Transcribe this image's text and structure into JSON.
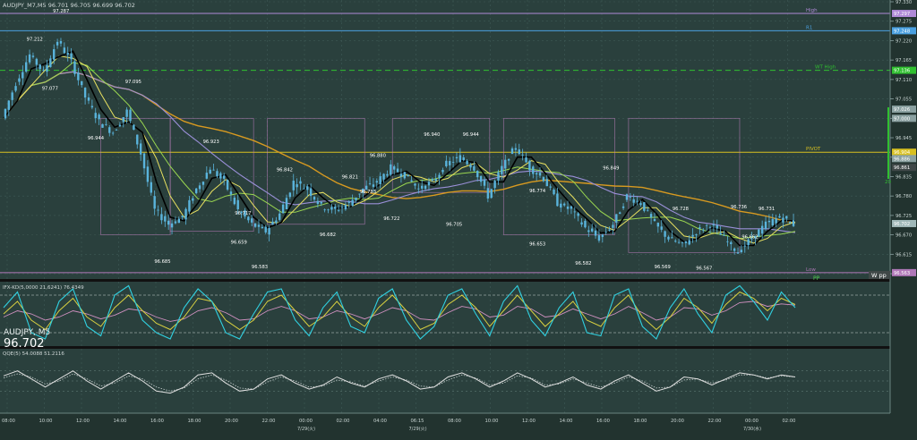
{
  "header": {
    "symbol_line": "AUDJPY_M7,M5 96.701 96.705 96.699 96.702",
    "symbol": "AUDJPY, M5",
    "last_price": "96.702",
    "pane1_label": "IFX-KD(5,0000 21,6241) 76.4349",
    "pane2_label": "QQE(5) 54.0088 51.2116"
  },
  "colors": {
    "background": "#2a403d",
    "grid": "#3f5a56",
    "candle": "#5ab4dc",
    "price_black": "#000000",
    "ma_yellow": "#e8e060",
    "ma_green": "#9ad650",
    "ma_violet": "#9a8fd8",
    "ma_orange": "#d89a20",
    "level_high": "#c0a0e0",
    "level_r1": "#4aa0e0",
    "level_wthigh": "#30b030",
    "level_pivot": "#d8c020",
    "level_low": "#c080c0",
    "osc_cyan": "#30d0e0",
    "osc_yellow": "#d8d040",
    "osc_pink": "#d090c0",
    "qqe_white": "#e0e0e0"
  },
  "levels": [
    {
      "name": "High",
      "value": 97.297,
      "label": "97.297",
      "color": "#b08ad8",
      "dash": false
    },
    {
      "name": "R1",
      "value": 97.248,
      "label": "97.248",
      "color": "#4aa0e0",
      "dash": false
    },
    {
      "name": "WT High",
      "value": 97.136,
      "label": "97.136",
      "color": "#30c030",
      "dash": true
    },
    {
      "name": "PIVOT",
      "value": 96.904,
      "label": "96.904",
      "color": "#d8c020",
      "dash": false
    },
    {
      "name": "Low",
      "value": 96.563,
      "label": "96.563",
      "color": "#b078b8",
      "dash": false
    }
  ],
  "wpp_label": "W pp",
  "pp_label": "PP",
  "side_tag": "20",
  "chart_data": {
    "type": "candlestick",
    "title": "AUDJPY, M5",
    "ylim": [
      96.55,
      97.33
    ],
    "yticks": [
      "97.330",
      "97.275",
      "97.220",
      "97.165",
      "97.110",
      "97.055",
      "97.000",
      "96.945",
      "96.890",
      "96.835",
      "96.780",
      "96.725",
      "96.670",
      "96.615",
      "96.560"
    ],
    "price_tags": [
      {
        "label": "97.297",
        "value": 97.297,
        "color": "#b08ad8"
      },
      {
        "label": "97.248",
        "value": 97.248,
        "color": "#4aa0e0"
      },
      {
        "label": "97.136",
        "value": 97.136,
        "color": "#30c030"
      },
      {
        "label": "97.026",
        "value": 97.026,
        "color": "#8aa0a0"
      },
      {
        "label": "97.000",
        "value": 97.0,
        "color": "#8aa0a0"
      },
      {
        "label": "96.904",
        "value": 96.904,
        "color": "#d8c020"
      },
      {
        "label": "96.886",
        "value": 96.886,
        "color": "#8aa0a0"
      },
      {
        "label": "96.861",
        "value": 96.861,
        "color": "#404848"
      },
      {
        "label": "96.702",
        "value": 96.702,
        "color": "#a0b8b8"
      },
      {
        "label": "96.563",
        "value": 96.563,
        "color": "#b078b8"
      }
    ],
    "xtick_labels": [
      "08:00",
      "10:00",
      "12:00",
      "14:00",
      "16:00",
      "18:00",
      "20:00",
      "22:00",
      "00:00",
      "02:00",
      "04:00",
      "06:15",
      "08:00",
      "10:00",
      "12:00",
      "14:00",
      "16:00",
      "18:00",
      "20:00",
      "22:00",
      "00:00",
      "02:00"
    ],
    "date_labels": [
      {
        "label": "7/29(火)",
        "index": 8
      },
      {
        "label": "7/29(火)",
        "index": 11
      },
      {
        "label": "7/30(水)",
        "index": 20
      }
    ],
    "price_path": [
      [
        0,
        97.0
      ],
      [
        1,
        97.1
      ],
      [
        2,
        97.18
      ],
      [
        3,
        97.13
      ],
      [
        4,
        97.22
      ],
      [
        5,
        97.16
      ],
      [
        6,
        97.06
      ],
      [
        7,
        96.99
      ],
      [
        8,
        96.96
      ],
      [
        9,
        97.02
      ],
      [
        10,
        96.9
      ],
      [
        11,
        96.74
      ],
      [
        12,
        96.7
      ],
      [
        13,
        96.72
      ],
      [
        14,
        96.8
      ],
      [
        15,
        96.86
      ],
      [
        16,
        96.82
      ],
      [
        17,
        96.74
      ],
      [
        18,
        96.7
      ],
      [
        19,
        96.68
      ],
      [
        20,
        96.73
      ],
      [
        21,
        96.82
      ],
      [
        22,
        96.8
      ],
      [
        23,
        96.75
      ],
      [
        24,
        96.74
      ],
      [
        25,
        96.76
      ],
      [
        26,
        96.8
      ],
      [
        27,
        96.82
      ],
      [
        28,
        96.86
      ],
      [
        29,
        96.84
      ],
      [
        30,
        96.8
      ],
      [
        31,
        96.82
      ],
      [
        32,
        96.87
      ],
      [
        33,
        96.89
      ],
      [
        34,
        96.86
      ],
      [
        35,
        96.78
      ],
      [
        36,
        96.86
      ],
      [
        37,
        96.92
      ],
      [
        38,
        96.86
      ],
      [
        39,
        96.83
      ],
      [
        40,
        96.76
      ],
      [
        41,
        96.74
      ],
      [
        42,
        96.69
      ],
      [
        43,
        96.66
      ],
      [
        44,
        96.7
      ],
      [
        45,
        96.78
      ],
      [
        46,
        96.76
      ],
      [
        47,
        96.7
      ],
      [
        48,
        96.66
      ],
      [
        49,
        96.64
      ],
      [
        50,
        96.68
      ],
      [
        51,
        96.7
      ],
      [
        52,
        96.66
      ],
      [
        53,
        96.62
      ],
      [
        54,
        96.66
      ],
      [
        55,
        96.7
      ],
      [
        56,
        96.72
      ],
      [
        57,
        96.7
      ]
    ],
    "annotations": [
      {
        "text": "97.287",
        "i": 4.2,
        "v": 97.3
      },
      {
        "text": "97.212",
        "i": 2.3,
        "v": 97.22
      },
      {
        "text": "97.077",
        "i": 3.4,
        "v": 97.08
      },
      {
        "text": "97.095",
        "i": 9.4,
        "v": 97.1
      },
      {
        "text": "96.944",
        "i": 6.7,
        "v": 96.94
      },
      {
        "text": "96.923",
        "i": 15.0,
        "v": 96.93
      },
      {
        "text": "96.842",
        "i": 20.3,
        "v": 96.85
      },
      {
        "text": "96.717",
        "i": 17.3,
        "v": 96.727
      },
      {
        "text": "96.685",
        "i": 11.5,
        "v": 96.59
      },
      {
        "text": "96.659",
        "i": 17.0,
        "v": 96.645
      },
      {
        "text": "96.583",
        "i": 18.5,
        "v": 96.575
      },
      {
        "text": "96.682",
        "i": 23.4,
        "v": 96.667
      },
      {
        "text": "96.821",
        "i": 25.0,
        "v": 96.83
      },
      {
        "text": "96.783",
        "i": 26.3,
        "v": 96.788
      },
      {
        "text": "96.880",
        "i": 27.0,
        "v": 96.89
      },
      {
        "text": "96.722",
        "i": 28.0,
        "v": 96.712
      },
      {
        "text": "96.940",
        "i": 30.9,
        "v": 96.95
      },
      {
        "text": "96.944",
        "i": 33.7,
        "v": 96.95
      },
      {
        "text": "96.705",
        "i": 32.5,
        "v": 96.695
      },
      {
        "text": "96.774",
        "i": 38.5,
        "v": 96.79
      },
      {
        "text": "96.653",
        "i": 38.5,
        "v": 96.64
      },
      {
        "text": "96.849",
        "i": 43.8,
        "v": 96.855
      },
      {
        "text": "96.582",
        "i": 41.8,
        "v": 96.585
      },
      {
        "text": "96.728",
        "i": 48.8,
        "v": 96.74
      },
      {
        "text": "96.569",
        "i": 47.5,
        "v": 96.575
      },
      {
        "text": "96.567",
        "i": 50.5,
        "v": 96.572
      },
      {
        "text": "96.736",
        "i": 53.0,
        "v": 96.745
      },
      {
        "text": "96.731",
        "i": 55.0,
        "v": 96.74
      },
      {
        "text": "96.662",
        "i": 53.8,
        "v": 96.66
      }
    ],
    "osc_pane": {
      "yticks": [
        "100.0000",
        "80.0000",
        "20.0000",
        "0.0000"
      ],
      "ylim": [
        0,
        100
      ],
      "cyan": [
        60,
        85,
        20,
        10,
        70,
        90,
        30,
        15,
        80,
        95,
        40,
        20,
        10,
        60,
        90,
        70,
        20,
        10,
        50,
        85,
        90,
        40,
        15,
        60,
        85,
        30,
        20,
        75,
        90,
        40,
        10,
        30,
        80,
        90,
        50,
        15,
        70,
        95,
        40,
        15,
        60,
        85,
        20,
        15,
        80,
        90,
        30,
        10,
        60,
        90,
        50,
        20,
        80,
        95,
        70,
        40,
        85,
        60
      ],
      "yellow": [
        50,
        70,
        40,
        25,
        55,
        75,
        45,
        30,
        60,
        80,
        55,
        35,
        25,
        45,
        75,
        70,
        40,
        25,
        40,
        70,
        80,
        55,
        30,
        45,
        70,
        45,
        30,
        60,
        80,
        55,
        25,
        35,
        65,
        80,
        60,
        30,
        55,
        80,
        55,
        30,
        50,
        70,
        40,
        30,
        60,
        80,
        45,
        25,
        45,
        75,
        60,
        35,
        65,
        85,
        75,
        55,
        75,
        65
      ],
      "pink": [
        45,
        55,
        50,
        40,
        45,
        55,
        50,
        42,
        48,
        58,
        55,
        45,
        38,
        42,
        55,
        60,
        52,
        40,
        42,
        55,
        62,
        55,
        42,
        45,
        55,
        50,
        42,
        50,
        60,
        55,
        42,
        40,
        52,
        62,
        58,
        45,
        48,
        62,
        58,
        45,
        48,
        58,
        50,
        42,
        50,
        62,
        52,
        40,
        45,
        60,
        58,
        48,
        55,
        68,
        70,
        62,
        66,
        64
      ]
    },
    "qqe_pane": {
      "yticks": [
        "75",
        "60",
        "50",
        "40",
        "25"
      ],
      "ylim": [
        20,
        80
      ],
      "white": [
        55,
        60,
        52,
        44,
        52,
        60,
        50,
        42,
        50,
        58,
        50,
        40,
        38,
        44,
        56,
        58,
        48,
        40,
        42,
        52,
        56,
        48,
        42,
        46,
        54,
        48,
        44,
        52,
        56,
        50,
        42,
        44,
        54,
        58,
        52,
        44,
        50,
        58,
        52,
        44,
        48,
        54,
        46,
        42,
        50,
        56,
        48,
        40,
        44,
        54,
        52,
        46,
        52,
        58,
        56,
        52,
        56,
        54
      ],
      "dotted": [
        53,
        57,
        54,
        47,
        50,
        57,
        52,
        45,
        48,
        55,
        52,
        44,
        40,
        43,
        52,
        56,
        51,
        43,
        42,
        49,
        54,
        50,
        44,
        45,
        51,
        49,
        45,
        50,
        54,
        51,
        45,
        44,
        51,
        56,
        53,
        46,
        48,
        55,
        53,
        46,
        47,
        52,
        48,
        44,
        48,
        54,
        50,
        43,
        44,
        51,
        52,
        48,
        51,
        56,
        56,
        53,
        55,
        54
      ]
    }
  }
}
